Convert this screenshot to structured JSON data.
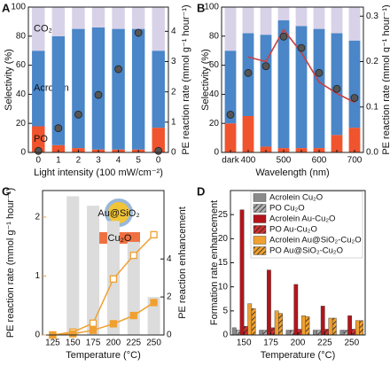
{
  "chart_data": [
    {
      "type": "stacked_bar",
      "panel_label": "A",
      "categories": [
        "0",
        "1",
        "2",
        "3",
        "4",
        "5",
        "0"
      ],
      "series": [
        {
          "name": "PO",
          "color": "#f0542e",
          "values": [
            18,
            5,
            3,
            2,
            2,
            2,
            17
          ]
        },
        {
          "name": "Acrolein",
          "color": "#4a86c8",
          "values": [
            52,
            75,
            82,
            84,
            83,
            83,
            53
          ]
        },
        {
          "name": "CO₂",
          "color": "#d8d2e8",
          "values": [
            30,
            20,
            15,
            14,
            15,
            15,
            30
          ]
        },
        {
          "axis": "y2",
          "marker": "circle",
          "color": "#555555",
          "values": [
            0.05,
            0.8,
            1.25,
            1.9,
            2.75,
            3.95,
            0.05
          ]
        }
      ],
      "xlabel": "Light intensity (100 mW/cm⁻²)",
      "ylabel": "Selectivity (%)",
      "y2label": "PE reaction rate (mmol g⁻¹ hour⁻¹)",
      "ylim": [
        0,
        100
      ],
      "yticks": [
        0,
        20,
        40,
        60,
        80,
        100
      ],
      "y2lim": [
        0,
        4.8
      ],
      "y2ticks": [
        0,
        1,
        2,
        3,
        4
      ]
    },
    {
      "type": "stacked_bar",
      "panel_label": "B",
      "categories": [
        "dark",
        "400",
        null,
        "500",
        null,
        "600",
        null,
        "700"
      ],
      "series": [
        {
          "color": "#f0542e",
          "values": [
            20,
            25,
            4,
            3,
            3,
            3,
            12,
            17
          ]
        },
        {
          "color": "#4a86c8",
          "values": [
            50,
            57,
            77,
            88,
            84,
            82,
            70,
            60
          ]
        },
        {
          "color": "#d8d2e8",
          "values": [
            30,
            18,
            19,
            9,
            13,
            15,
            18,
            23
          ]
        },
        {
          "axis": "y2",
          "marker": "line",
          "color": "#c84040",
          "values": [
            null,
            0.21,
            0.2,
            0.27,
            0.22,
            0.155,
            0.13,
            0.11
          ]
        },
        {
          "axis": "y2",
          "marker": "circle",
          "color": "#555555",
          "values": [
            0.083,
            0.175,
            0.19,
            0.255,
            0.23,
            0.175,
            0.14,
            0.12
          ]
        }
      ],
      "xlabel": "Wavelength (nm)",
      "ylabel": "Selectivity (%)",
      "y2label": "PE reaction rate (mmol g⁻¹ hour⁻¹)",
      "ylim": [
        0,
        100
      ],
      "yticks": [
        0,
        20,
        40,
        60,
        80,
        100
      ],
      "y2lim": [
        0,
        0.32
      ],
      "y2ticks": [
        {
          "value": 0,
          "label": "0.0"
        },
        0.1,
        0.2,
        0.3
      ]
    },
    {
      "type": "bar_line",
      "panel_label": "C",
      "inset_labels": [
        "Au@SiO₂",
        "Cu₂O"
      ],
      "x": [
        125,
        150,
        175,
        200,
        225,
        250
      ],
      "series": [
        {
          "axis": "y2",
          "marker": "bar",
          "color": "#dcdcdc",
          "values": [
            null,
            7.3,
            6.8,
            6.0,
            4.9,
            2.0
          ]
        },
        {
          "marker": "open-square",
          "color": "#f0a030",
          "values": [
            0,
            0.05,
            0.2,
            0.95,
            1.35,
            1.7
          ]
        },
        {
          "marker": "square",
          "color": "#f0a030",
          "values": [
            0,
            0.02,
            0.08,
            0.19,
            0.33,
            0.55
          ]
        }
      ],
      "xlabel": "Temperature (°C)",
      "ylabel": "PE reaction rate (mmol g⁻¹ hour⁻¹)",
      "y2label": "PE reaction enhancement",
      "y_color": "#f0a030",
      "xlim": [
        112.5,
        262.5
      ],
      "xticks": [
        125,
        150,
        175,
        200,
        225,
        250
      ],
      "ylim": [
        0,
        2.45
      ],
      "yticks": [
        0,
        1,
        2
      ],
      "y2lim": [
        0,
        7.6
      ],
      "y2ticks": [
        0,
        2,
        4
      ]
    },
    {
      "type": "grouped_bar",
      "panel_label": "D",
      "categories": [
        "150",
        "175",
        "200",
        "225",
        "250"
      ],
      "series": [
        {
          "name": "Acrolein Cu₂O",
          "color": "#8a8a8a",
          "values": [
            1.5,
            1,
            1,
            1,
            1
          ]
        },
        {
          "name": "PO Cu₂O",
          "color": "#b0b0b0",
          "hatch": true,
          "values": [
            1,
            1,
            1,
            1,
            1
          ]
        },
        {
          "name": "Acrolein Au-Cu₂O",
          "color": "#b3141b",
          "values": [
            26,
            13.5,
            10.5,
            6,
            4
          ]
        },
        {
          "name": "PO Au-Cu₂O",
          "color": "#d03030",
          "hatch": true,
          "values": [
            1.8,
            1.5,
            1.2,
            1.2,
            1.2
          ]
        },
        {
          "name": "Acrolein Au@SiO₂-Cu₂O",
          "color": "#f0a030",
          "values": [
            6.5,
            5,
            4,
            3.5,
            3
          ]
        },
        {
          "name": "PO Au@SiO₂-Cu₂O",
          "color": "#f0a030",
          "hatch": true,
          "values": [
            5.5,
            4.5,
            3.8,
            3.5,
            3
          ]
        }
      ],
      "xlabel": "Temperature (°C)",
      "ylabel": "Formation rate enhancement",
      "ylim": [
        0,
        30
      ],
      "yticks": [
        0,
        5,
        10,
        15,
        20,
        25
      ],
      "legend": "upper right"
    }
  ]
}
